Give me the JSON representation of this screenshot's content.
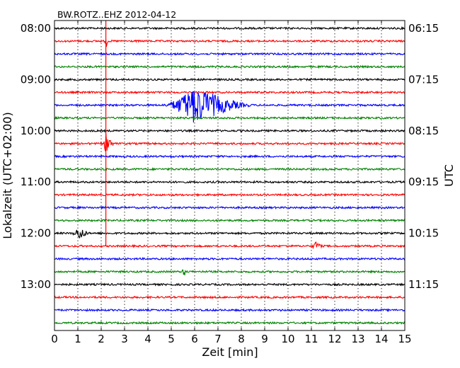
{
  "chart_data": {
    "type": "line",
    "title": "BW.ROTZ..EHZ 2012-04-12",
    "xlabel": "Zeit  [min]",
    "ylabel_left": "Lokalzeit (UTC+02:00)",
    "ylabel_right": "UTC",
    "xlim": [
      0,
      15
    ],
    "x_ticks": [
      "0",
      "1",
      "2",
      "3",
      "4",
      "5",
      "6",
      "7",
      "8",
      "9",
      "10",
      "11",
      "12",
      "13",
      "14",
      "15"
    ],
    "left_tick_labels": [
      "08:00",
      "09:00",
      "10:00",
      "11:00",
      "12:00",
      "13:00"
    ],
    "right_tick_labels": [
      "06:15",
      "07:15",
      "08:15",
      "09:15",
      "10:15",
      "11:15"
    ],
    "trace_colors": [
      "#000000",
      "#ff0000",
      "#0000ff",
      "#008000"
    ],
    "num_traces": 24,
    "grid": true,
    "events": [
      {
        "trace": 6,
        "x_start": 4.6,
        "x_peak": 6.0,
        "x_end": 8.6,
        "amplitude": 1.0
      },
      {
        "trace": 9,
        "x_start": 2.1,
        "x_peak": 2.2,
        "x_end": 2.6,
        "amplitude": 0.6
      },
      {
        "trace": 16,
        "x_start": 0.7,
        "x_peak": 1.1,
        "x_end": 1.5,
        "amplitude": 0.35
      },
      {
        "trace": 17,
        "x_start": 11.0,
        "x_peak": 11.2,
        "x_end": 11.5,
        "amplitude": 0.25
      },
      {
        "trace": 19,
        "x_start": 5.4,
        "x_peak": 5.55,
        "x_end": 5.7,
        "amplitude": 0.2
      },
      {
        "trace": 1,
        "x_start": 2.15,
        "x_peak": 2.2,
        "x_end": 2.3,
        "amplitude": 0.5
      }
    ],
    "spike_line": {
      "x": 2.2,
      "color": "#ff0000",
      "from_trace": 0,
      "to_trace": 17
    }
  }
}
